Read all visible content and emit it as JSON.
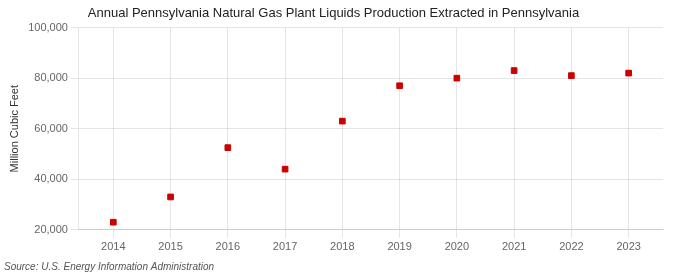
{
  "chart_data": {
    "type": "scatter",
    "title": "Annual Pennsylvania Natural Gas Plant Liquids Production Extracted in Pennsylvania",
    "y_label": "Million Cubic Feet",
    "annotations": [
      "Source: U.S. Energy Information Administration"
    ],
    "x": [
      2014,
      2015,
      2016,
      2017,
      2018,
      2019,
      2020,
      2021,
      2022,
      2023
    ],
    "values": [
      23000,
      33000,
      52500,
      44000,
      63000,
      77000,
      80000,
      83000,
      81000,
      82000
    ],
    "color": "#cc0000",
    "marker": "square",
    "xlim": [
      2013.4,
      2023.6
    ],
    "xticks": [
      2014,
      2015,
      2016,
      2017,
      2018,
      2019,
      2020,
      2021,
      2022,
      2023
    ],
    "ylim": [
      20000,
      100000
    ],
    "yticks": [
      {
        "value": 20000,
        "label": "20,000"
      },
      {
        "value": 40000,
        "label": "40,000"
      },
      {
        "value": 60000,
        "label": "60,000"
      },
      {
        "value": 80000,
        "label": "80,000"
      },
      {
        "value": 100000,
        "label": "100,000"
      }
    ],
    "grid": true
  }
}
